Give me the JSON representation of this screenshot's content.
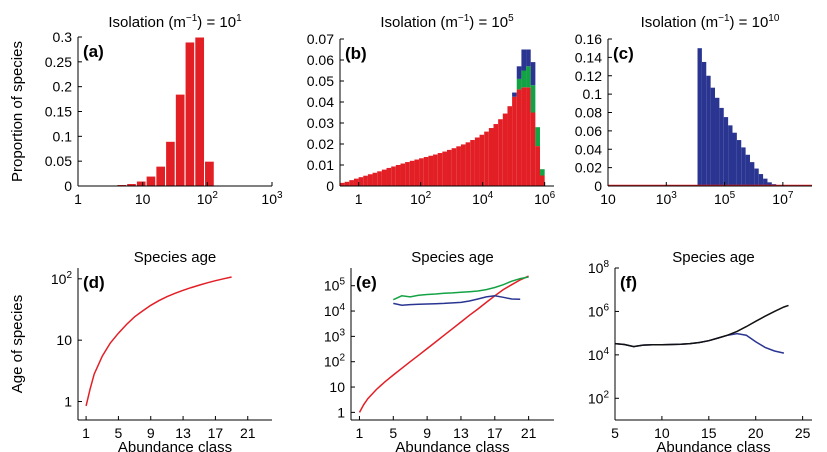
{
  "colors": {
    "red": "#e31f26",
    "green": "#14a344",
    "blue": "#2a3591",
    "black": "#111111"
  },
  "chart_data": [
    {
      "id": "a",
      "type": "bar",
      "panel_label": "(a)",
      "title": "Isolation (m",
      "title_sup": "−1",
      "title_mid": ") = 10",
      "title_exp": "1",
      "ylabel": "Proportion of species",
      "xlabel": "",
      "x_scale": "log",
      "xlim": [
        1,
        1000
      ],
      "ylim": [
        0,
        0.3
      ],
      "x_ticks": [
        {
          "value": 1,
          "base": "1",
          "exp": ""
        },
        {
          "value": 10,
          "base": "10",
          "exp": ""
        },
        {
          "value": 100,
          "base": "10",
          "exp": "2"
        },
        {
          "value": 1000,
          "base": "10",
          "exp": "3"
        }
      ],
      "y_ticks": [
        {
          "value": 0,
          "label": "0"
        },
        {
          "value": 0.05,
          "label": "0.05"
        },
        {
          "value": 0.1,
          "label": "0.1"
        },
        {
          "value": 0.15,
          "label": "0.15"
        },
        {
          "value": 0.2,
          "label": "0.2"
        },
        {
          "value": 0.25,
          "label": "0.25"
        },
        {
          "value": 0.3,
          "label": "0.3"
        }
      ],
      "bin_edges": [
        1,
        1.4142,
        2,
        2.8284,
        4,
        5.6569,
        8,
        11.314,
        16,
        22.627,
        32,
        45.255,
        64,
        90.51,
        128,
        181.02,
        256,
        362.04,
        512,
        724.08,
        1000
      ],
      "series": [
        {
          "color": "red",
          "values": [
            0,
            0,
            0,
            0.002,
            0.003,
            0.005,
            0.01,
            0.02,
            0.04,
            0.09,
            0.185,
            0.29,
            0.3,
            0.05,
            0,
            0,
            0,
            0,
            0,
            0
          ]
        }
      ]
    },
    {
      "id": "b",
      "type": "bar",
      "panel_label": "(b)",
      "title": "Isolation (m",
      "title_sup": "−1",
      "title_mid": ") = 10",
      "title_exp": "5",
      "ylabel": "",
      "xlabel": "",
      "x_scale": "log",
      "xlim": [
        0.25,
        2000000
      ],
      "ylim": [
        0,
        0.07
      ],
      "x_ticks": [
        {
          "value": 1,
          "base": "1",
          "exp": ""
        },
        {
          "value": 100,
          "base": "10",
          "exp": "2"
        },
        {
          "value": 10000,
          "base": "10",
          "exp": "4"
        },
        {
          "value": 1000000,
          "base": "10",
          "exp": "6"
        }
      ],
      "y_ticks": [
        {
          "value": 0,
          "label": "0"
        },
        {
          "value": 0.01,
          "label": "0.01"
        },
        {
          "value": 0.02,
          "label": "0.02"
        },
        {
          "value": 0.03,
          "label": "0.03"
        },
        {
          "value": 0.04,
          "label": "0.04"
        },
        {
          "value": 0.05,
          "label": "0.05"
        },
        {
          "value": 0.06,
          "label": "0.06"
        },
        {
          "value": 0.07,
          "label": "0.07"
        }
      ],
      "bin_range": [
        0.25,
        1000000
      ],
      "bin_count": 44,
      "series": [
        {
          "color": "red",
          "values": [
            0.0015,
            0.002,
            0.0028,
            0.0035,
            0.0042,
            0.0049,
            0.0056,
            0.0063,
            0.007,
            0.0078,
            0.0086,
            0.0093,
            0.01,
            0.0107,
            0.0114,
            0.012,
            0.0126,
            0.0132,
            0.0138,
            0.0144,
            0.015,
            0.0157,
            0.0164,
            0.0172,
            0.018,
            0.0189,
            0.0198,
            0.0208,
            0.0219,
            0.0231,
            0.0244,
            0.0259,
            0.0276,
            0.0295,
            0.0318,
            0.0345,
            0.038,
            0.0425,
            0.046,
            0.047,
            0.047,
            0.035,
            0.019,
            0.005
          ]
        },
        {
          "color": "green",
          "values": [
            0,
            0,
            0,
            0,
            0,
            0,
            0,
            0,
            0,
            0,
            0,
            0,
            0,
            0,
            0,
            0,
            0,
            0,
            0,
            0,
            0,
            0,
            0,
            0,
            0,
            0,
            0,
            0,
            0,
            0,
            0,
            0,
            0,
            0,
            0,
            0,
            0,
            0,
            0.005,
            0.008,
            0.01,
            0.013,
            0.009,
            0.003
          ]
        },
        {
          "color": "blue",
          "values": [
            0,
            0,
            0,
            0,
            0,
            0,
            0,
            0,
            0,
            0,
            0,
            0,
            0,
            0,
            0,
            0,
            0,
            0,
            0,
            0,
            0,
            0,
            0,
            0,
            0,
            0,
            0,
            0,
            0,
            0,
            0,
            0,
            0,
            0,
            0,
            0,
            0,
            0.002,
            0.006,
            0.01,
            0.008,
            0.011,
            0,
            0
          ]
        }
      ]
    },
    {
      "id": "c",
      "type": "bar",
      "panel_label": "(c)",
      "title": "Isolation (m",
      "title_sup": "−1",
      "title_mid": ") = 10",
      "title_exp": "10",
      "ylabel": "",
      "xlabel": "",
      "x_scale": "log",
      "xlim": [
        10,
        100000000
      ],
      "ylim": [
        0,
        0.16
      ],
      "x_ticks": [
        {
          "value": 10,
          "base": "10",
          "exp": ""
        },
        {
          "value": 1000,
          "base": "10",
          "exp": "3"
        },
        {
          "value": 100000,
          "base": "10",
          "exp": "5"
        },
        {
          "value": 10000000,
          "base": "10",
          "exp": "7"
        }
      ],
      "y_ticks": [
        {
          "value": 0,
          "label": "0"
        },
        {
          "value": 0.02,
          "label": "0.02"
        },
        {
          "value": 0.04,
          "label": "0.04"
        },
        {
          "value": 0.06,
          "label": "0.06"
        },
        {
          "value": 0.08,
          "label": "0.08"
        },
        {
          "value": 0.1,
          "label": "0.1"
        },
        {
          "value": 0.12,
          "label": "0.12"
        },
        {
          "value": 0.14,
          "label": "0.14"
        },
        {
          "value": 0.16,
          "label": "0.16"
        }
      ],
      "bin_range": [
        11800,
        11800000
      ],
      "bin_count": 20,
      "series": [
        {
          "color": "blue",
          "values": [
            0.15,
            0.135,
            0.12,
            0.107,
            0.096,
            0.085,
            0.075,
            0.066,
            0.058,
            0.05,
            0.042,
            0.034,
            0.026,
            0.019,
            0.013,
            0.008,
            0.004,
            0.002,
            0.001,
            0.0005
          ]
        },
        {
          "color": "red",
          "values": [
            0,
            0,
            0,
            0,
            0,
            0,
            0,
            0,
            0,
            0,
            0,
            0,
            0,
            0,
            0,
            0,
            0,
            0,
            0,
            0
          ]
        }
      ]
    },
    {
      "id": "d",
      "type": "line",
      "panel_label": "(d)",
      "title": "Species age",
      "ylabel": "Age of species",
      "xlabel": "Abundance class",
      "y_scale": "log",
      "xlim": [
        0,
        24
      ],
      "ylim": [
        0.5,
        150
      ],
      "x_ticks": [
        {
          "value": 1,
          "label": "1"
        },
        {
          "value": 5,
          "label": "5"
        },
        {
          "value": 9,
          "label": "9"
        },
        {
          "value": 13,
          "label": "13"
        },
        {
          "value": 17,
          "label": "17"
        },
        {
          "value": 21,
          "label": "21"
        }
      ],
      "y_ticks": [
        {
          "value": 1,
          "base": "1",
          "exp": ""
        },
        {
          "value": 10,
          "base": "10",
          "exp": ""
        },
        {
          "value": 100,
          "base": "10",
          "exp": "2"
        }
      ],
      "series": [
        {
          "color": "red",
          "x": [
            1,
            1.5,
            2,
            3,
            4,
            5,
            6,
            7,
            8,
            9,
            10,
            11,
            12,
            13,
            14,
            15,
            16,
            17,
            18,
            19
          ],
          "y": [
            0.85,
            1.6,
            2.8,
            5.5,
            9,
            13,
            18,
            24,
            30,
            37,
            44,
            51,
            58,
            65,
            72,
            79,
            86,
            93,
            100,
            107
          ]
        }
      ]
    },
    {
      "id": "e",
      "type": "line",
      "panel_label": "(e)",
      "title": "Species age",
      "ylabel": "",
      "xlabel": "Abundance class",
      "y_scale": "log",
      "xlim": [
        0,
        24
      ],
      "ylim": [
        0.5,
        500000
      ],
      "x_ticks": [
        {
          "value": 1,
          "label": "1"
        },
        {
          "value": 5,
          "label": "5"
        },
        {
          "value": 9,
          "label": "9"
        },
        {
          "value": 13,
          "label": "13"
        },
        {
          "value": 17,
          "label": "17"
        },
        {
          "value": 21,
          "label": "21"
        }
      ],
      "y_ticks": [
        {
          "value": 1,
          "base": "1",
          "exp": ""
        },
        {
          "value": 10,
          "base": "10",
          "exp": ""
        },
        {
          "value": 100,
          "base": "10",
          "exp": "2"
        },
        {
          "value": 1000,
          "base": "10",
          "exp": "3"
        },
        {
          "value": 10000,
          "base": "10",
          "exp": "4"
        },
        {
          "value": 100000,
          "base": "10",
          "exp": "5"
        }
      ],
      "series": [
        {
          "color": "red",
          "x": [
            1,
            1.5,
            2,
            3,
            4,
            5,
            6,
            7,
            8,
            9,
            10,
            11,
            12,
            13,
            14,
            15,
            16,
            17,
            18,
            19,
            20,
            21
          ],
          "y": [
            1,
            2,
            3.5,
            8,
            16,
            30,
            55,
            100,
            180,
            330,
            600,
            1100,
            2000,
            3700,
            6800,
            12000,
            22000,
            40000,
            70000,
            110000,
            170000,
            240000
          ]
        },
        {
          "color": "green",
          "x": [
            5,
            6,
            7,
            8,
            9,
            10,
            11,
            12,
            13,
            14,
            15,
            16,
            17,
            18,
            19,
            20,
            21
          ],
          "y": [
            28000,
            40000,
            36000,
            42000,
            45000,
            47000,
            50000,
            52000,
            55000,
            58000,
            62000,
            70000,
            85000,
            110000,
            150000,
            190000,
            220000
          ]
        },
        {
          "color": "blue",
          "x": [
            5,
            6,
            7,
            8,
            9,
            10,
            11,
            12,
            13,
            14,
            15,
            16,
            17,
            18,
            19,
            20
          ],
          "y": [
            20000,
            17000,
            18000,
            18500,
            19000,
            19500,
            20000,
            21000,
            22000,
            25000,
            30000,
            36000,
            40000,
            35000,
            30000,
            29000
          ]
        }
      ]
    },
    {
      "id": "f",
      "type": "line",
      "panel_label": "(f)",
      "title": "Species age",
      "ylabel": "",
      "xlabel": "Abundance class",
      "y_scale": "log",
      "xlim": [
        5,
        26
      ],
      "ylim": [
        10,
        100000000
      ],
      "x_ticks": [
        {
          "value": 5,
          "label": "5"
        },
        {
          "value": 10,
          "label": "10"
        },
        {
          "value": 15,
          "label": "15"
        },
        {
          "value": 20,
          "label": "20"
        },
        {
          "value": 25,
          "label": "25"
        }
      ],
      "y_ticks": [
        {
          "value": 100,
          "base": "10",
          "exp": "2"
        },
        {
          "value": 10000,
          "base": "10",
          "exp": "4"
        },
        {
          "value": 1000000,
          "base": "10",
          "exp": "6"
        },
        {
          "value": 100000000,
          "base": "10",
          "exp": "8"
        }
      ],
      "series": [
        {
          "color": "blue",
          "x": [
            5,
            6,
            7,
            8,
            9,
            10,
            11,
            12,
            13,
            14,
            15,
            16,
            17,
            18,
            19,
            20,
            21,
            22,
            23
          ],
          "y": [
            33000,
            30000,
            24000,
            28000,
            29000,
            29000,
            30000,
            31000,
            33000,
            37000,
            45000,
            60000,
            80000,
            95000,
            80000,
            40000,
            22000,
            15000,
            12000
          ]
        },
        {
          "color": "black",
          "x": [
            5,
            6,
            7,
            8,
            9,
            10,
            11,
            12,
            13,
            14,
            15,
            16,
            17,
            18,
            19,
            20,
            21,
            22,
            23,
            23.5
          ],
          "y": [
            33000,
            30000,
            24000,
            28000,
            29000,
            29000,
            30000,
            31000,
            33000,
            37000,
            45000,
            60000,
            80000,
            120000,
            200000,
            350000,
            600000,
            1000000,
            1600000,
            1900000
          ]
        }
      ]
    }
  ]
}
